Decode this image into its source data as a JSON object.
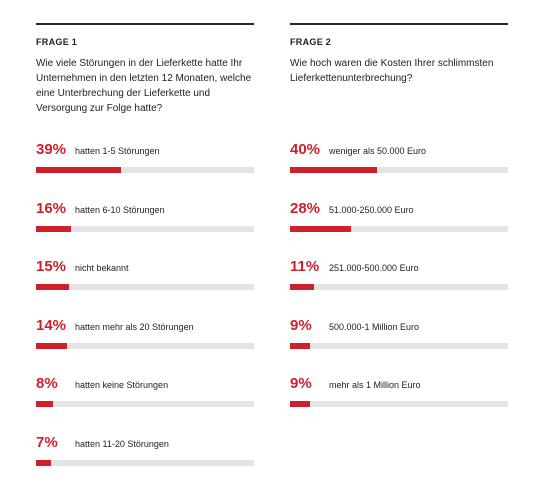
{
  "chart_data": [
    {
      "type": "bar",
      "label": "FRAGE 1",
      "question": "Wie viele Störungen in der Lieferkette hatte Ihr Unternehmen in den letzten 12 Monaten, welche eine Unterbrechung der Lieferkette und Versorgung zur Folge hatte?",
      "items": [
        {
          "value": 39,
          "display": "39%",
          "text": "hatten 1-5 Störungen"
        },
        {
          "value": 16,
          "display": "16%",
          "text": "hatten 6-10 Störungen"
        },
        {
          "value": 15,
          "display": "15%",
          "text": "nicht bekannt"
        },
        {
          "value": 14,
          "display": "14%",
          "text": "hatten mehr als 20 Störungen"
        },
        {
          "value": 8,
          "display": "8%",
          "text": "hatten keine Störungen"
        },
        {
          "value": 7,
          "display": "7%",
          "text": "hatten 11-20 Störungen"
        }
      ],
      "xlim": [
        0,
        100
      ]
    },
    {
      "type": "bar",
      "label": "FRAGE 2",
      "question": "Wie hoch waren die Kosten Ihrer schlimmsten Lieferkettenunterbrechung?",
      "items": [
        {
          "value": 40,
          "display": "40%",
          "text": "weniger als 50.000 Euro"
        },
        {
          "value": 28,
          "display": "28%",
          "text": "51.000-250.000 Euro"
        },
        {
          "value": 11,
          "display": "11%",
          "text": "251.000-500.000 Euro"
        },
        {
          "value": 9,
          "display": "9%",
          "text": "500.000-1 Million Euro"
        },
        {
          "value": 9,
          "display": "9%",
          "text": "mehr als 1 Million Euro"
        }
      ],
      "xlim": [
        0,
        100
      ]
    }
  ],
  "colors": {
    "accent": "#d0202a",
    "track": "#e4e4e4",
    "rule": "#2b2b2b"
  }
}
